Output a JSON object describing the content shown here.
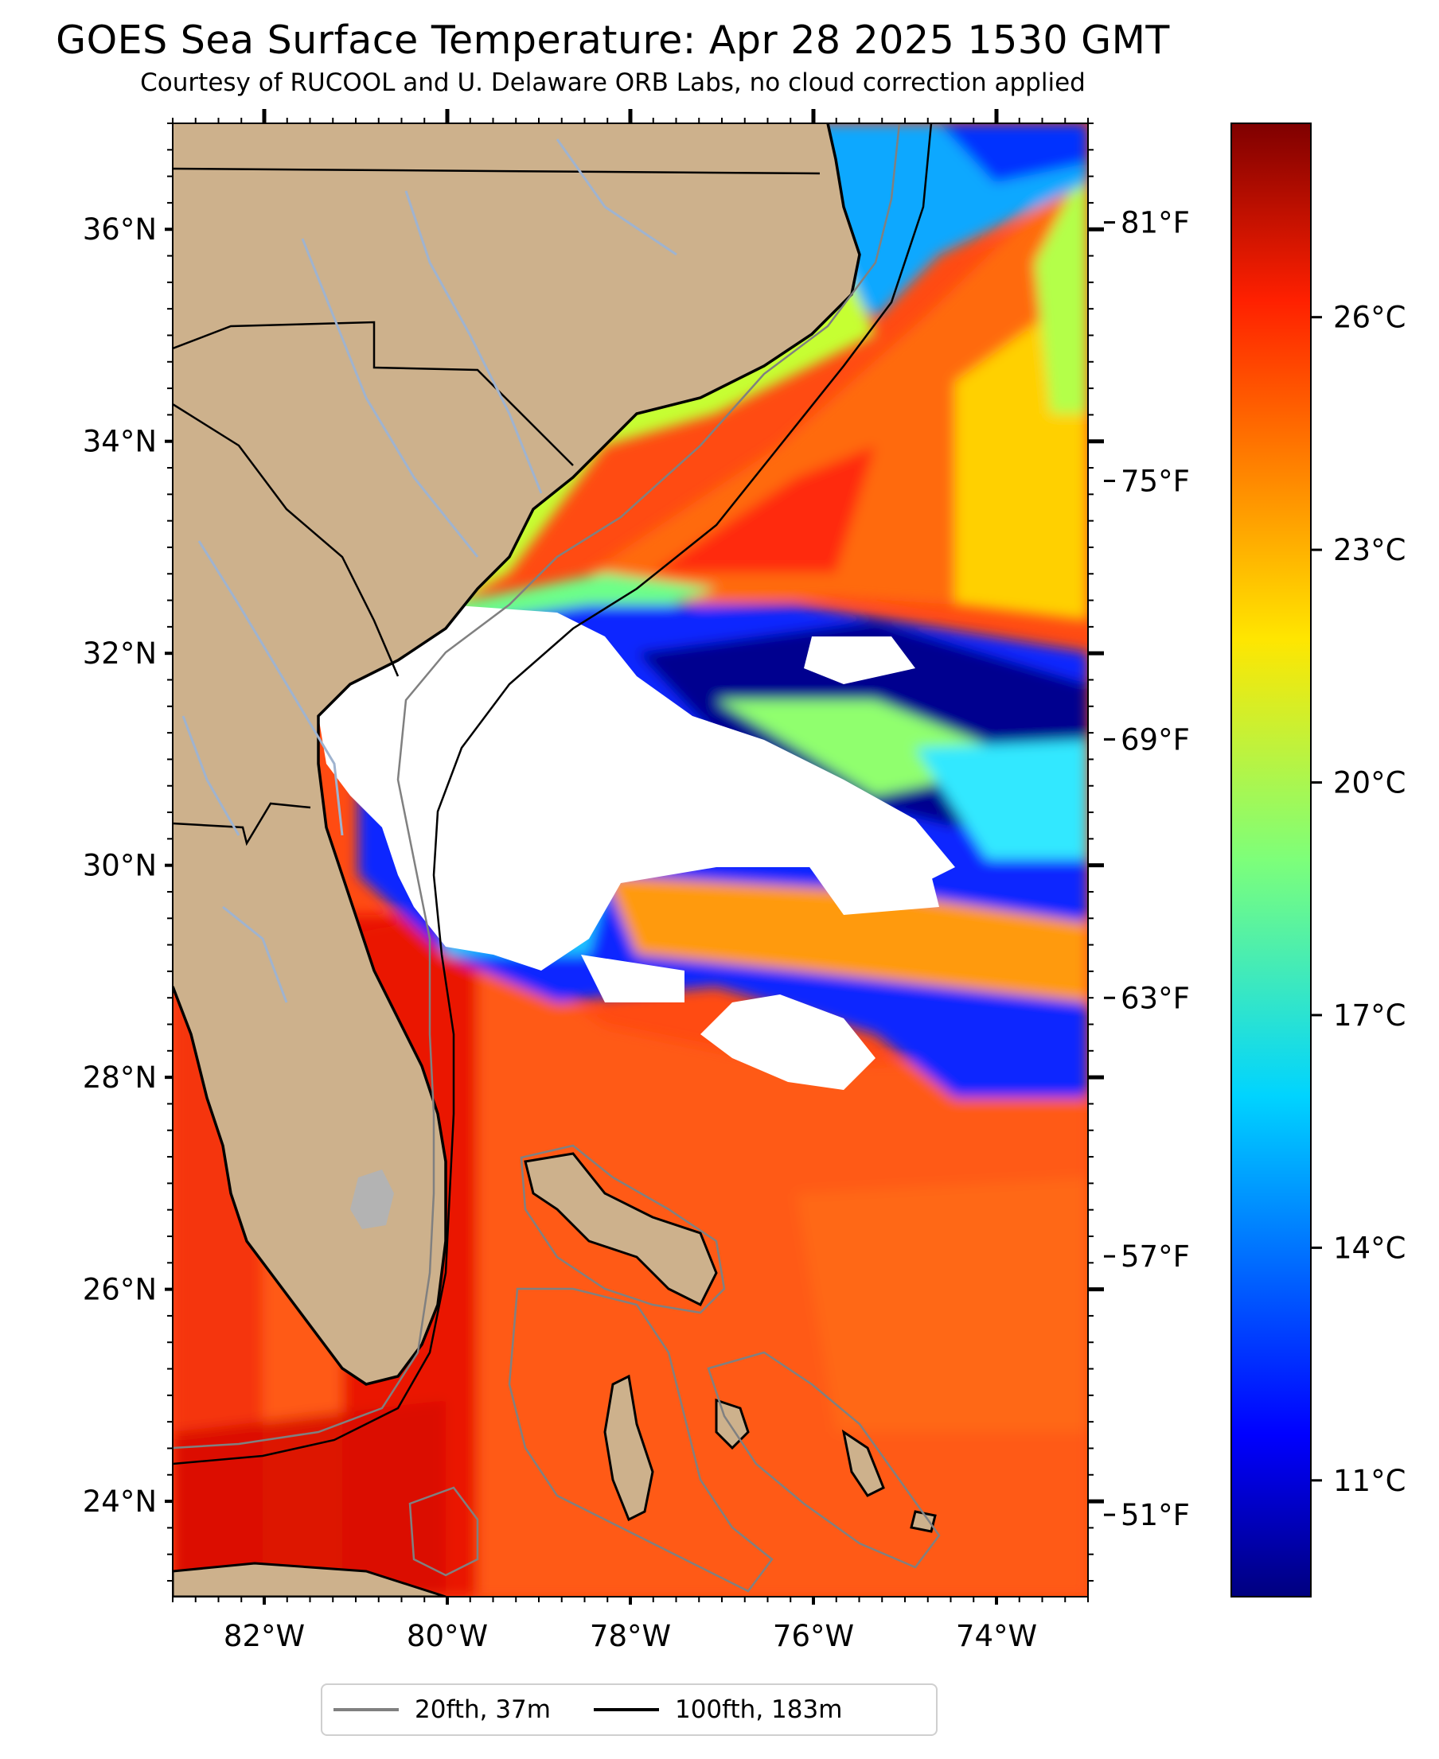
{
  "title": "GOES Sea Surface Temperature: Apr 28 2025 1530 GMT",
  "subtitle": "Courtesy of RUCOOL and U. Delaware ORB Labs, no cloud correction applied",
  "map": {
    "lon_range": [
      -83,
      -73
    ],
    "lat_range": [
      23.1,
      37.0
    ],
    "lat_ticks": [
      {
        "value": 24,
        "label": "24°N"
      },
      {
        "value": 26,
        "label": "26°N"
      },
      {
        "value": 28,
        "label": "28°N"
      },
      {
        "value": 30,
        "label": "30°N"
      },
      {
        "value": 32,
        "label": "32°N"
      },
      {
        "value": 34,
        "label": "34°N"
      },
      {
        "value": 36,
        "label": "36°N"
      }
    ],
    "lon_ticks": [
      {
        "value": -82,
        "label": "82°W"
      },
      {
        "value": -80,
        "label": "80°W"
      },
      {
        "value": -78,
        "label": "78°W"
      },
      {
        "value": -76,
        "label": "76°W"
      },
      {
        "value": -74,
        "label": "74°W"
      }
    ],
    "colors": {
      "land": "#cdb18c",
      "no_data": "#ffffff",
      "isobath_20fth": "#808080",
      "isobath_100fth": "#000000",
      "rivers": "#9fb3cf",
      "borders": "#000000"
    }
  },
  "colorbar": {
    "range_c": [
      9.5,
      28.5
    ],
    "celsius_ticks": [
      {
        "value": 11,
        "label": "11°C"
      },
      {
        "value": 14,
        "label": "14°C"
      },
      {
        "value": 17,
        "label": "17°C"
      },
      {
        "value": 20,
        "label": "20°C"
      },
      {
        "value": 23,
        "label": "23°C"
      },
      {
        "value": 26,
        "label": "26°C"
      }
    ],
    "fahrenheit_ticks": [
      {
        "value": 51,
        "label": "51°F"
      },
      {
        "value": 57,
        "label": "57°F"
      },
      {
        "value": 63,
        "label": "63°F"
      },
      {
        "value": 69,
        "label": "69°F"
      },
      {
        "value": 75,
        "label": "75°F"
      },
      {
        "value": 81,
        "label": "81°F"
      }
    ],
    "colormap": "jet"
  },
  "legend": [
    {
      "label": "20fth, 37m",
      "color": "#808080"
    },
    {
      "label": "100fth, 183m",
      "color": "#000000"
    }
  ]
}
